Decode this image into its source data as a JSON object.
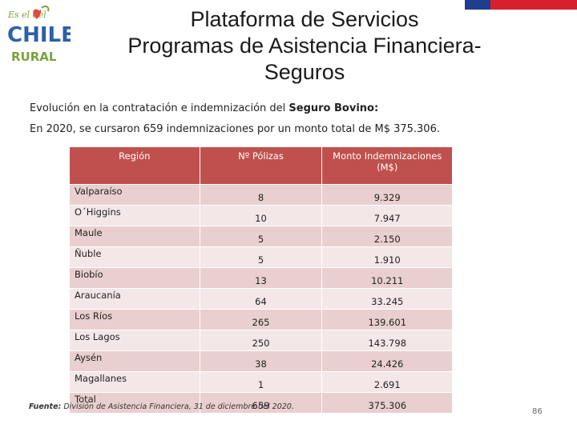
{
  "logo": {
    "top_text": "Es el del",
    "main_text": "CHILE",
    "sub_text": "RURAL"
  },
  "title": {
    "line1": "Plataforma de Servicios",
    "line2": "Programas de Asistencia Financiera-",
    "line3": "Seguros"
  },
  "intro": {
    "line1_prefix": "Evolución en la contratación e indemnización del ",
    "line1_bold": "Seguro Bovino:",
    "line2": "En 2020, se cursaron 659 indemnizaciones por un monto total de M$ 375.306."
  },
  "table": {
    "headers": [
      "Región",
      "Nº Pólizas",
      "Monto Indemnizaciones (M$)"
    ],
    "rows": [
      [
        "Valparaíso",
        "8",
        "9.329"
      ],
      [
        "O´Higgins",
        "10",
        "7.947"
      ],
      [
        "Maule",
        "5",
        "2.150"
      ],
      [
        "Ñuble",
        "5",
        "1.910"
      ],
      [
        "Biobío",
        "13",
        "10.211"
      ],
      [
        "Araucanía",
        "64",
        "33.245"
      ],
      [
        "Los Ríos",
        "265",
        "139.601"
      ],
      [
        "Los Lagos",
        "250",
        "143.798"
      ],
      [
        "Aysén",
        "38",
        "24.426"
      ],
      [
        "Magallanes",
        "1",
        "2.691"
      ],
      [
        "Total",
        "659",
        "375.306"
      ]
    ]
  },
  "source": {
    "label": "Fuente:",
    "text": " División de Asistencia Financiera, 31 de diciembre del 2020."
  },
  "page_number": "86",
  "colors": {
    "header_bg": "#c0504d",
    "row_dark": "#e9cfcf",
    "row_light": "#f4e7e7",
    "flag_blue": "#1f3e8c",
    "flag_red": "#d6202c"
  }
}
